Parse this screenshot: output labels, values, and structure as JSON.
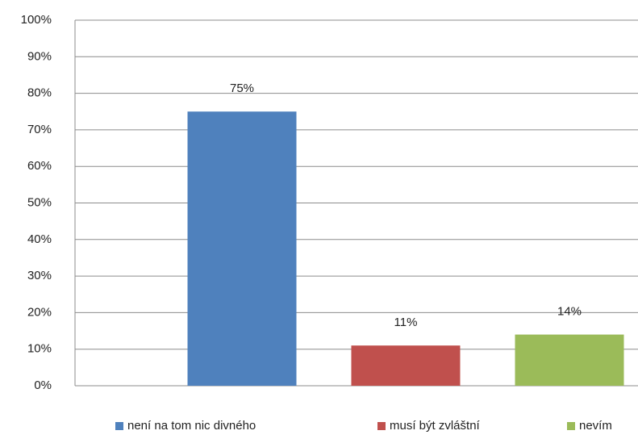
{
  "chart_data": {
    "type": "bar",
    "categories": [
      null
    ],
    "series": [
      {
        "name": "není na tom nic divného",
        "color": "#4f81bd",
        "values": [
          75
        ],
        "value_labels": [
          "75%"
        ]
      },
      {
        "name": "musí být zvláštní",
        "color": "#c0504d",
        "values": [
          11
        ],
        "value_labels": [
          "11%"
        ]
      },
      {
        "name": "nevím",
        "color": "#9bbb59",
        "values": [
          14
        ],
        "value_labels": [
          "14%"
        ]
      }
    ],
    "ylim": [
      0,
      100
    ],
    "yticks": [
      {
        "value": 0,
        "label": "0%"
      },
      {
        "value": 10,
        "label": "10%"
      },
      {
        "value": 20,
        "label": "20%"
      },
      {
        "value": 30,
        "label": "30%"
      },
      {
        "value": 40,
        "label": "40%"
      },
      {
        "value": 50,
        "label": "50%"
      },
      {
        "value": 60,
        "label": "60%"
      },
      {
        "value": 70,
        "label": "70%"
      },
      {
        "value": 80,
        "label": "80%"
      },
      {
        "value": 90,
        "label": "90%"
      },
      {
        "value": 100,
        "label": "100%"
      }
    ],
    "grid": true,
    "legend": "bottom"
  }
}
